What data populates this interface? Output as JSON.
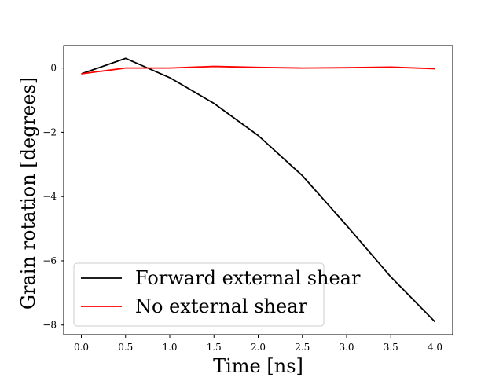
{
  "chart_data": {
    "type": "line",
    "title": "",
    "xlabel": "Time [ns]",
    "ylabel": "Grain rotation [degrees]",
    "xlim": [
      -0.2,
      4.2
    ],
    "ylim": [
      -8.3,
      0.7
    ],
    "xticks": [
      0.0,
      0.5,
      1.0,
      1.5,
      2.0,
      2.5,
      3.0,
      3.5,
      4.0
    ],
    "xtick_labels": [
      "0.0",
      "0.5",
      "1.0",
      "1.5",
      "2.0",
      "2.5",
      "3.0",
      "3.5",
      "4.0"
    ],
    "yticks": [
      0,
      -2,
      -4,
      -6,
      -8
    ],
    "ytick_labels": [
      "0",
      "−2",
      "−4",
      "−6",
      "−8"
    ],
    "grid": false,
    "legend_position": "lower-left",
    "series": [
      {
        "name": "Forward external shear",
        "color": "#000000",
        "x": [
          0.0,
          0.5,
          1.0,
          1.5,
          2.0,
          2.5,
          3.0,
          3.5,
          4.0
        ],
        "y": [
          -0.18,
          0.3,
          -0.3,
          -1.1,
          -2.1,
          -3.35,
          -4.9,
          -6.5,
          -7.9
        ]
      },
      {
        "name": "No external shear",
        "color": "#ff0000",
        "x": [
          0.0,
          0.5,
          1.0,
          1.5,
          2.0,
          2.5,
          3.0,
          3.5,
          4.0
        ],
        "y": [
          -0.18,
          0.0,
          0.0,
          0.05,
          0.02,
          0.0,
          0.01,
          0.03,
          -0.02
        ]
      }
    ]
  }
}
